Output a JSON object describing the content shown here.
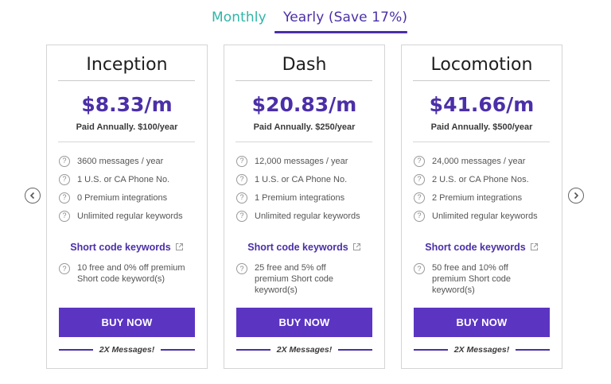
{
  "tabs": {
    "monthly": "Monthly",
    "yearly": "Yearly (Save 17%)",
    "active": "yearly"
  },
  "colors": {
    "accent": "#4b2fa8",
    "button": "#5b35c2",
    "monthly_tab": "#2fb6a6"
  },
  "icons": {
    "prev": "chevron-left-icon",
    "next": "chevron-right-icon",
    "feature": "question-circle-icon",
    "link": "external-link-icon"
  },
  "plans": [
    {
      "name": "Inception",
      "price": "$8.33/m",
      "billing": "Paid Annually. $100/year",
      "features": [
        "3600 messages / year",
        "1 U.S. or CA Phone No.",
        "0 Premium integrations",
        "Unlimited regular keywords"
      ],
      "short_code_label": "Short code keywords",
      "short_code_detail": "10 free and 0% off premium Short code keyword(s)",
      "buy_label": "BUY NOW",
      "bonus": "2X Messages!"
    },
    {
      "name": "Dash",
      "price": "$20.83/m",
      "billing": "Paid Annually. $250/year",
      "features": [
        "12,000 messages / year",
        "1 U.S. or CA Phone No.",
        "1 Premium integrations",
        "Unlimited regular keywords"
      ],
      "short_code_label": "Short code keywords",
      "short_code_detail": "25 free and 5% off premium Short code keyword(s)",
      "buy_label": "BUY NOW",
      "bonus": "2X Messages!"
    },
    {
      "name": "Locomotion",
      "price": "$41.66/m",
      "billing": "Paid Annually. $500/year",
      "features": [
        "24,000 messages / year",
        "2 U.S. or CA Phone Nos.",
        "2 Premium integrations",
        "Unlimited regular keywords"
      ],
      "short_code_label": "Short code keywords",
      "short_code_detail": "50 free and 10% off premium Short code keyword(s)",
      "buy_label": "BUY NOW",
      "bonus": "2X Messages!"
    }
  ]
}
